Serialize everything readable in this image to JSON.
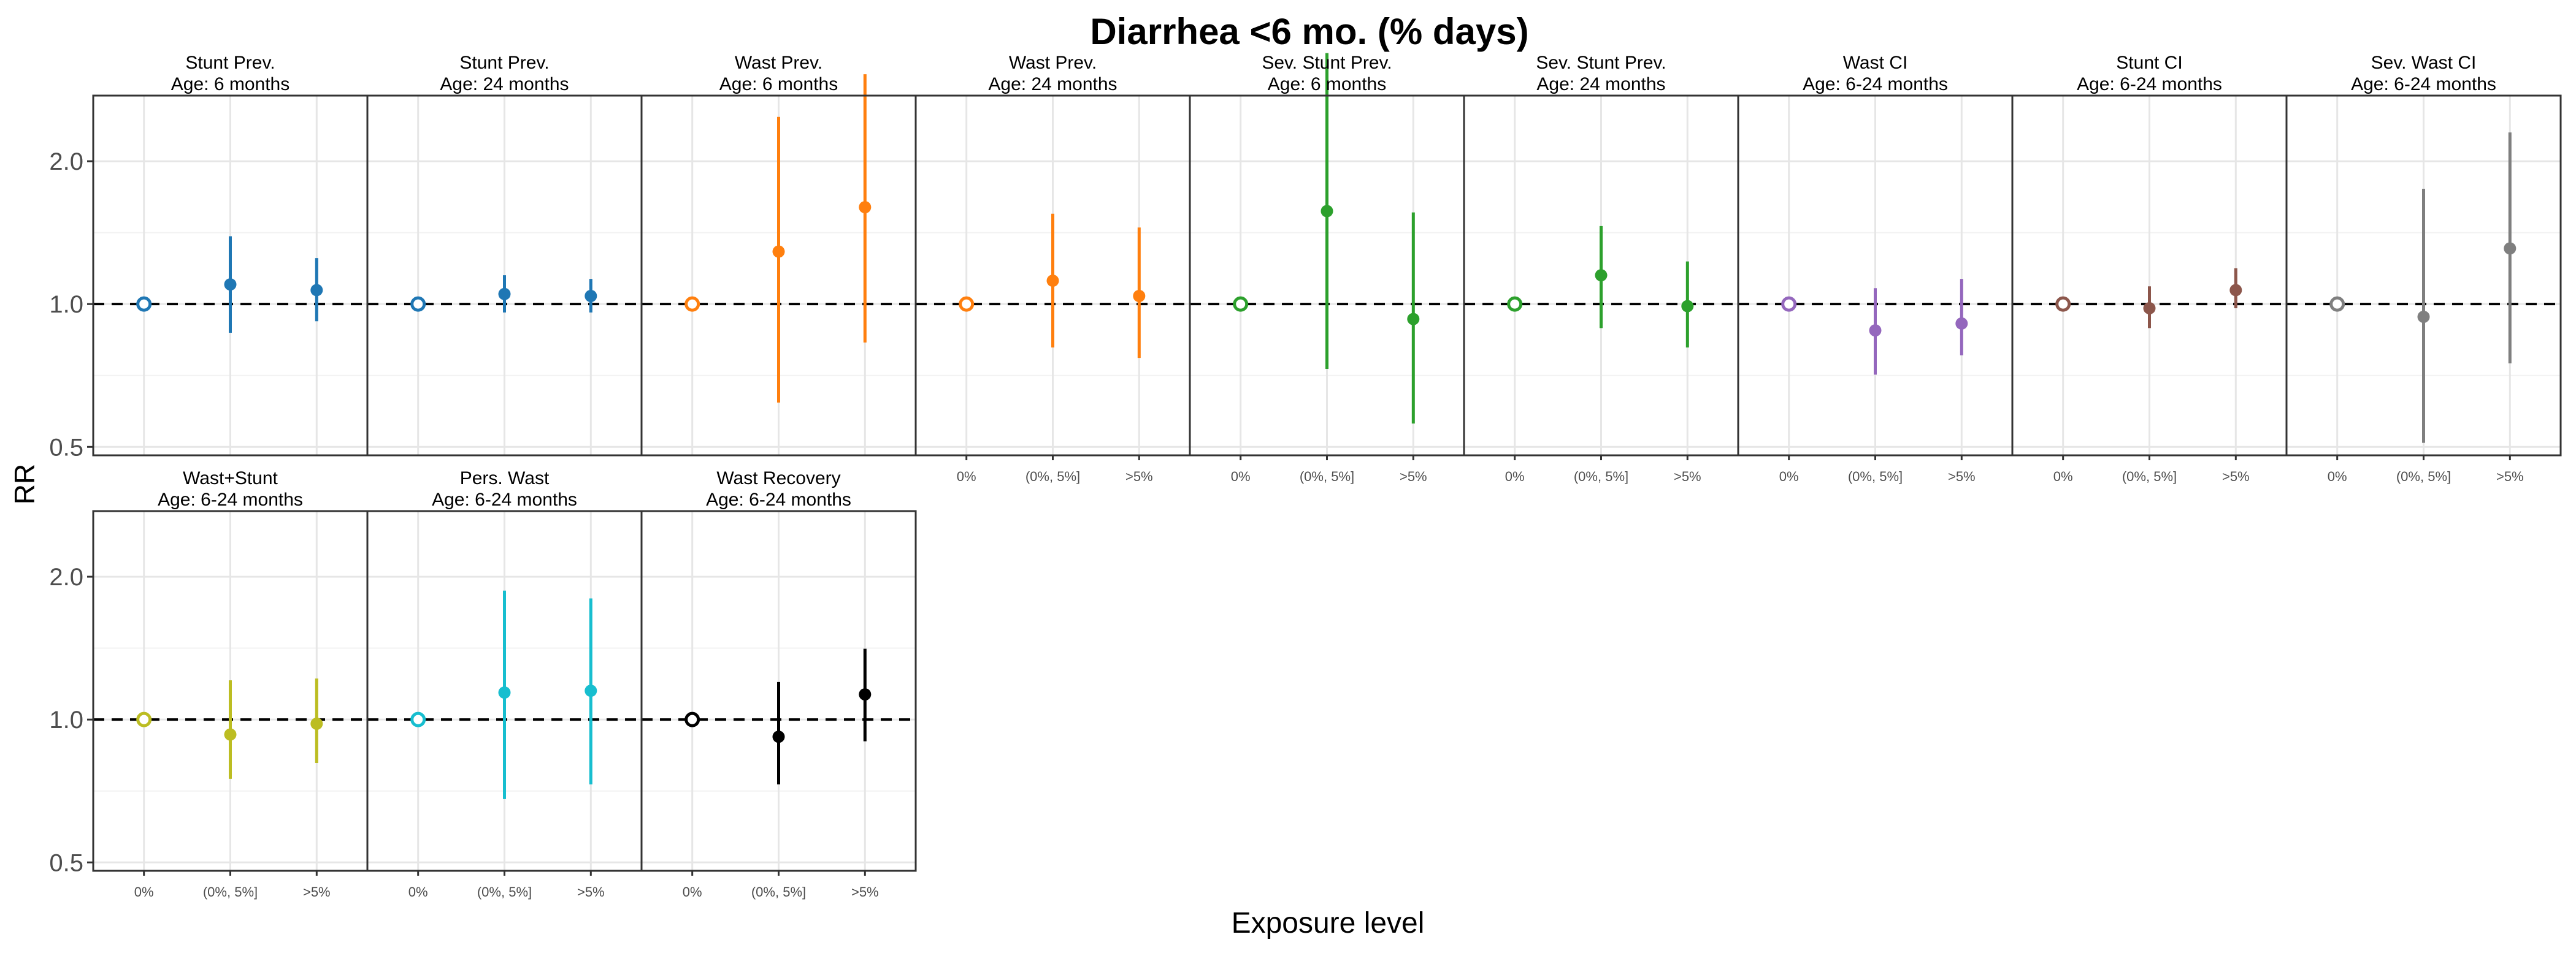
{
  "title": "Diarrhea <6 mo. (% days)",
  "xlabel": "Exposure level",
  "ylabel": "RR",
  "chart_data": {
    "type": "scatter",
    "subtype": "point-range (forest) small multiples",
    "y_scale": "log",
    "ylim": [
      0.48,
      2.75
    ],
    "y_ticks": [
      0.5,
      1.0,
      2.0
    ],
    "y_tick_labels": [
      "0.5",
      "1.0",
      "2.0"
    ],
    "reference_line": 1.0,
    "categories": [
      "0%",
      "(0%, 5%]",
      ">5%"
    ],
    "grid": true,
    "panels": [
      {
        "title": "Stunt Prev.",
        "subtitle": "Age: 6 months",
        "color": "#1f77b4",
        "points": [
          {
            "rr": 1.0,
            "lo": 1.0,
            "hi": 1.0
          },
          {
            "rr": 1.1,
            "lo": 0.87,
            "hi": 1.39
          },
          {
            "rr": 1.07,
            "lo": 0.92,
            "hi": 1.25
          }
        ]
      },
      {
        "title": "Stunt Prev.",
        "subtitle": "Age: 24 months",
        "color": "#1f77b4",
        "points": [
          {
            "rr": 1.0,
            "lo": 1.0,
            "hi": 1.0
          },
          {
            "rr": 1.05,
            "lo": 0.96,
            "hi": 1.15
          },
          {
            "rr": 1.04,
            "lo": 0.96,
            "hi": 1.13
          }
        ]
      },
      {
        "title": "Wast Prev.",
        "subtitle": "Age: 6 months",
        "color": "#ff7f0e",
        "points": [
          {
            "rr": 1.0,
            "lo": 1.0,
            "hi": 1.0
          },
          {
            "rr": 1.29,
            "lo": 0.62,
            "hi": 2.48
          },
          {
            "rr": 1.6,
            "lo": 0.83,
            "hi": 3.05
          }
        ]
      },
      {
        "title": "Wast Prev.",
        "subtitle": "Age: 24 months",
        "color": "#ff7f0e",
        "points": [
          {
            "rr": 1.0,
            "lo": 1.0,
            "hi": 1.0
          },
          {
            "rr": 1.12,
            "lo": 0.81,
            "hi": 1.55
          },
          {
            "rr": 1.04,
            "lo": 0.77,
            "hi": 1.45
          }
        ]
      },
      {
        "title": "Sev. Stunt Prev.",
        "subtitle": "Age: 6 months",
        "color": "#2ca02c",
        "points": [
          {
            "rr": 1.0,
            "lo": 1.0,
            "hi": 1.0
          },
          {
            "rr": 1.57,
            "lo": 0.73,
            "hi": 3.38
          },
          {
            "rr": 0.93,
            "lo": 0.56,
            "hi": 1.56
          }
        ]
      },
      {
        "title": "Sev. Stunt Prev.",
        "subtitle": "Age: 24 months",
        "color": "#2ca02c",
        "points": [
          {
            "rr": 1.0,
            "lo": 1.0,
            "hi": 1.0
          },
          {
            "rr": 1.15,
            "lo": 0.89,
            "hi": 1.46
          },
          {
            "rr": 0.99,
            "lo": 0.81,
            "hi": 1.23
          }
        ]
      },
      {
        "title": "Wast CI",
        "subtitle": "Age: 6-24 months",
        "color": "#9467bd",
        "points": [
          {
            "rr": 1.0,
            "lo": 1.0,
            "hi": 1.0
          },
          {
            "rr": 0.88,
            "lo": 0.71,
            "hi": 1.08
          },
          {
            "rr": 0.91,
            "lo": 0.78,
            "hi": 1.13
          }
        ]
      },
      {
        "title": "Stunt CI",
        "subtitle": "Age: 6-24 months",
        "color": "#8c564b",
        "points": [
          {
            "rr": 1.0,
            "lo": 1.0,
            "hi": 1.0
          },
          {
            "rr": 0.98,
            "lo": 0.89,
            "hi": 1.09
          },
          {
            "rr": 1.07,
            "lo": 0.98,
            "hi": 1.19
          }
        ]
      },
      {
        "title": "Sev. Wast CI",
        "subtitle": "Age: 6-24 months",
        "color": "#7f7f7f",
        "points": [
          {
            "rr": 1.0,
            "lo": 1.0,
            "hi": 1.0
          },
          {
            "rr": 0.94,
            "lo": 0.51,
            "hi": 1.75
          },
          {
            "rr": 1.31,
            "lo": 0.75,
            "hi": 2.3
          }
        ]
      },
      {
        "title": "Wast+Stunt",
        "subtitle": "Age: 6-24 months",
        "color": "#bcbd22",
        "points": [
          {
            "rr": 1.0,
            "lo": 1.0,
            "hi": 1.0
          },
          {
            "rr": 0.93,
            "lo": 0.75,
            "hi": 1.21
          },
          {
            "rr": 0.98,
            "lo": 0.81,
            "hi": 1.22
          }
        ]
      },
      {
        "title": "Pers. Wast",
        "subtitle": "Age: 6-24 months",
        "color": "#17becf",
        "points": [
          {
            "rr": 1.0,
            "lo": 1.0,
            "hi": 1.0
          },
          {
            "rr": 1.14,
            "lo": 0.68,
            "hi": 1.87
          },
          {
            "rr": 1.15,
            "lo": 0.73,
            "hi": 1.8
          }
        ]
      },
      {
        "title": "Wast Recovery",
        "subtitle": "Age: 6-24 months",
        "color": "#000000",
        "points": [
          {
            "rr": 1.0,
            "lo": 1.0,
            "hi": 1.0
          },
          {
            "rr": 0.92,
            "lo": 0.73,
            "hi": 1.2
          },
          {
            "rr": 1.13,
            "lo": 0.9,
            "hi": 1.41
          }
        ]
      }
    ]
  }
}
